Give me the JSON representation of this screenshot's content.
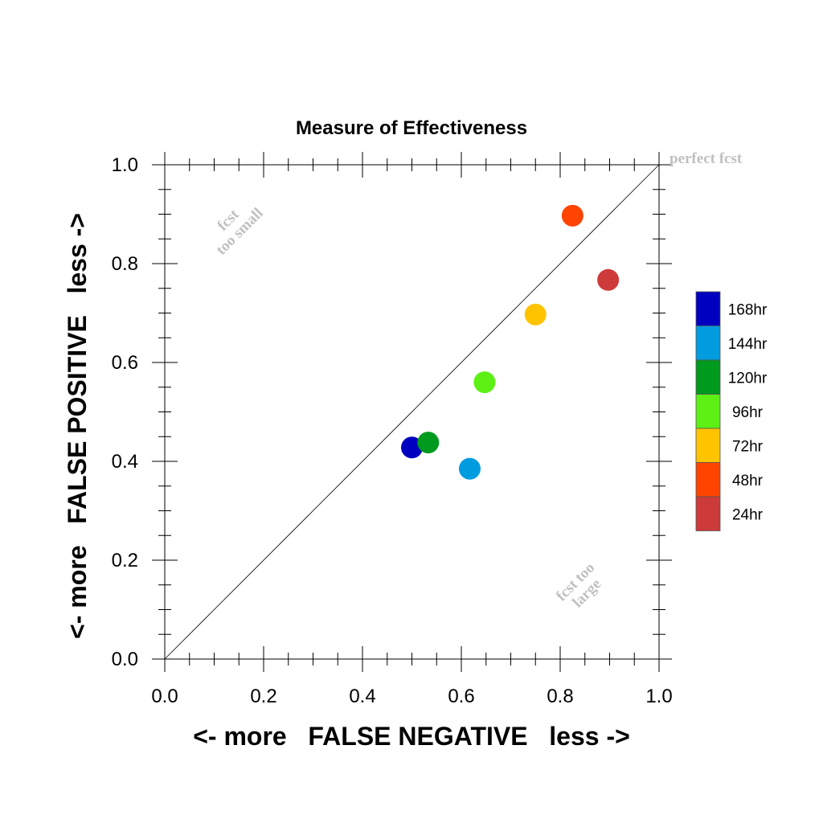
{
  "chart_data": {
    "type": "scatter",
    "title": "Measure of Effectiveness",
    "xlabel": "<- more   FALSE NEGATIVE   less ->",
    "ylabel": "<- more   FALSE POSITIVE   less ->",
    "xlim": [
      0.0,
      1.0
    ],
    "ylim": [
      0.0,
      1.0
    ],
    "x_ticks": [
      "0.0",
      "0.2",
      "0.4",
      "0.6",
      "0.8",
      "1.0"
    ],
    "y_ticks": [
      "0.0",
      "0.2",
      "0.4",
      "0.6",
      "0.8",
      "1.0"
    ],
    "grid": false,
    "diagonal_line": true,
    "annotations": {
      "perfect": "perfect fcst",
      "too_small_line1": "fcst",
      "too_small_line2": "too small",
      "too_large_line1": "fcst too",
      "too_large_line2": "large"
    },
    "legend_position": "right",
    "series": [
      {
        "name": "168hr",
        "color": "#0000c0",
        "x": 0.5,
        "y": 0.428
      },
      {
        "name": "144hr",
        "color": "#009ce0",
        "x": 0.617,
        "y": 0.385
      },
      {
        "name": "120hr",
        "color": "#009a1e",
        "x": 0.533,
        "y": 0.438
      },
      {
        "name": "96hr",
        "color": "#5cf014",
        "x": 0.647,
        "y": 0.56
      },
      {
        "name": "72hr",
        "color": "#ffc300",
        "x": 0.75,
        "y": 0.697
      },
      {
        "name": "48hr",
        "color": "#ff4400",
        "x": 0.825,
        "y": 0.897
      },
      {
        "name": "24hr",
        "color": "#cd3a3a",
        "x": 0.897,
        "y": 0.767
      }
    ]
  }
}
